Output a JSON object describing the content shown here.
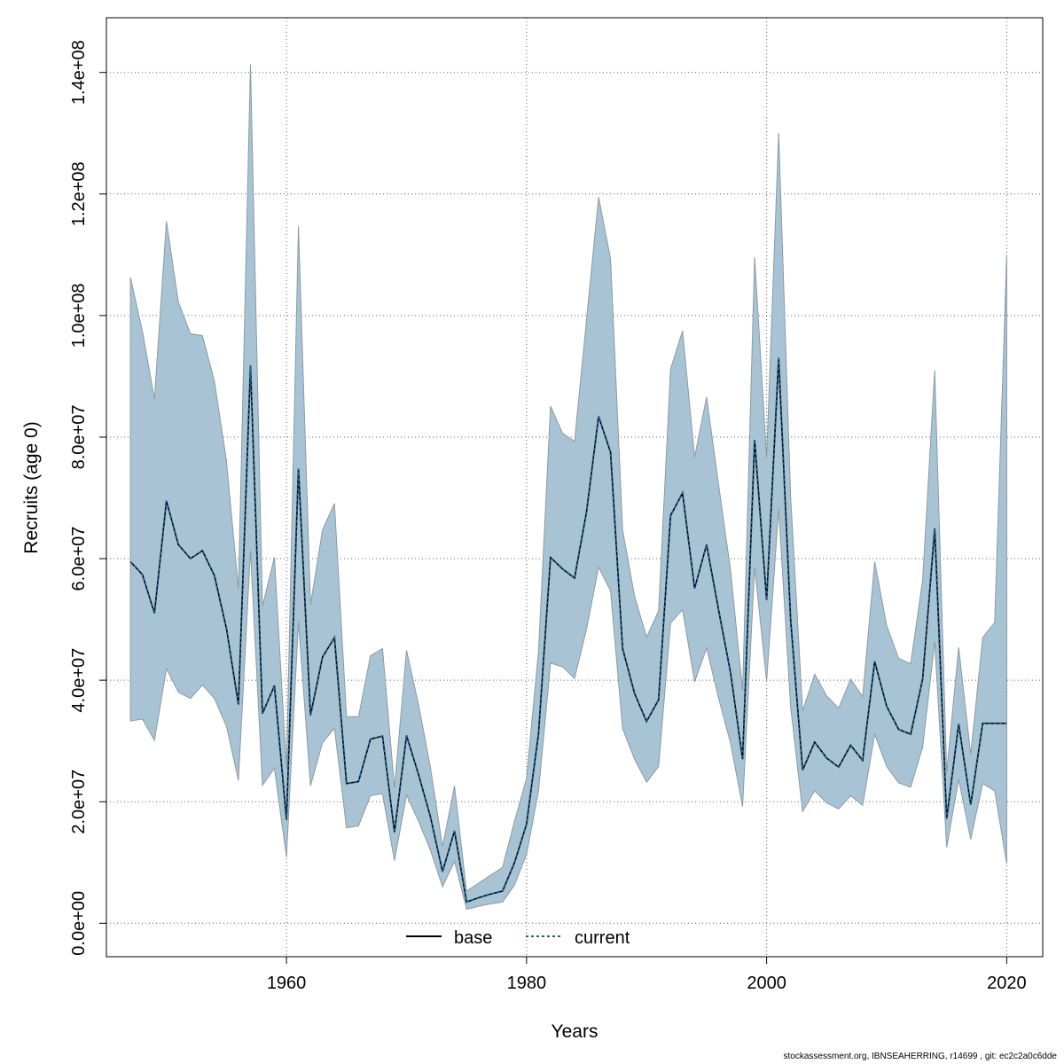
{
  "chart_data": {
    "type": "line",
    "xlabel": "Years",
    "ylabel": "Recruits (age 0)",
    "xlim": [
      1945,
      2023
    ],
    "ylim": [
      -5500000,
      149000000
    ],
    "x_ticks": [
      1960,
      1980,
      2000,
      2020
    ],
    "y_ticks": [
      0,
      20000000,
      40000000,
      60000000,
      80000000,
      100000000,
      120000000,
      140000000
    ],
    "y_tick_labels": [
      "0.0e+00",
      "2.0e+07",
      "4.0e+07",
      "6.0e+07",
      "8.0e+07",
      "1.0e+08",
      "1.2e+08",
      "1.4e+08"
    ],
    "grid": true,
    "legend_position": "bottom-center",
    "colors": {
      "band": "#a8c4d4",
      "band_edge": "#8d99a2",
      "base": "#000000",
      "current": "#1f5f8b"
    },
    "years": [
      1947,
      1948,
      1949,
      1950,
      1951,
      1952,
      1953,
      1954,
      1955,
      1956,
      1957,
      1958,
      1959,
      1960,
      1961,
      1962,
      1963,
      1964,
      1965,
      1966,
      1967,
      1968,
      1969,
      1970,
      1971,
      1972,
      1973,
      1974,
      1975,
      1976,
      1977,
      1978,
      1979,
      1980,
      1981,
      1982,
      1983,
      1984,
      1985,
      1986,
      1987,
      1988,
      1989,
      1990,
      1991,
      1992,
      1993,
      1994,
      1995,
      1996,
      1997,
      1998,
      1999,
      2000,
      2001,
      2002,
      2003,
      2004,
      2005,
      2006,
      2007,
      2008,
      2009,
      2010,
      2011,
      2012,
      2013,
      2014,
      2015,
      2016,
      2017,
      2018,
      2019,
      2020
    ],
    "series": [
      {
        "name": "base",
        "values": [
          59500000,
          57400000,
          51000000,
          69500000,
          62300000,
          60000000,
          61300000,
          57200000,
          48500000,
          36000000,
          91800000,
          34500000,
          39100000,
          17000000,
          74800000,
          34200000,
          43800000,
          47000000,
          23000000,
          23300000,
          30300000,
          30800000,
          15000000,
          30900000,
          24500000,
          17500000,
          8500000,
          15200000,
          3500000,
          4200000,
          4800000,
          5300000,
          10000000,
          16300000,
          31300000,
          60200000,
          58300000,
          56800000,
          67700000,
          83400000,
          77500000,
          45200000,
          37800000,
          33200000,
          36800000,
          67100000,
          70800000,
          55100000,
          62300000,
          51500000,
          41200000,
          27000000,
          79500000,
          53200000,
          93000000,
          49900000,
          25200000,
          29800000,
          27200000,
          25700000,
          29300000,
          26800000,
          43100000,
          35700000,
          31900000,
          31100000,
          40200000,
          65000000,
          17200000,
          32800000,
          19500000,
          32900000,
          32900000,
          32900000
        ]
      },
      {
        "name": "current",
        "values": [
          59500000,
          57400000,
          51000000,
          69500000,
          62300000,
          60000000,
          61300000,
          57200000,
          48500000,
          36000000,
          91800000,
          34500000,
          39100000,
          17000000,
          74800000,
          34200000,
          43800000,
          47000000,
          23000000,
          23300000,
          30300000,
          30800000,
          15000000,
          30900000,
          24500000,
          17500000,
          8500000,
          15200000,
          3500000,
          4200000,
          4800000,
          5300000,
          10000000,
          16300000,
          31300000,
          60200000,
          58300000,
          56800000,
          67700000,
          83400000,
          77500000,
          45200000,
          37800000,
          33200000,
          36800000,
          67100000,
          70800000,
          55100000,
          62300000,
          51500000,
          41200000,
          27000000,
          79500000,
          53200000,
          93000000,
          49900000,
          25200000,
          29800000,
          27200000,
          25700000,
          29300000,
          26800000,
          43100000,
          35700000,
          31900000,
          31100000,
          40200000,
          65000000,
          17200000,
          32800000,
          19500000,
          32900000,
          32900000,
          32900000
        ]
      }
    ],
    "interval": {
      "upper": [
        106300000,
        97400000,
        86300000,
        115500000,
        102200000,
        97000000,
        96700000,
        89200000,
        76100000,
        55000000,
        141300000,
        52200000,
        60200000,
        25500000,
        114700000,
        52400000,
        64700000,
        69100000,
        34000000,
        34000000,
        44000000,
        45200000,
        22300000,
        44900000,
        36000000,
        25600000,
        12600000,
        22600000,
        5300000,
        6600000,
        7900000,
        9200000,
        16800000,
        23800000,
        44900000,
        85100000,
        80600000,
        79300000,
        99300000,
        119500000,
        109300000,
        64700000,
        53800000,
        47100000,
        51400000,
        91200000,
        97500000,
        76700000,
        86600000,
        72100000,
        58000000,
        38300000,
        109600000,
        76700000,
        130000000,
        70200000,
        34900000,
        41000000,
        37400000,
        35400000,
        40200000,
        37300000,
        59500000,
        49000000,
        43600000,
        42700000,
        56500000,
        91000000,
        24800000,
        45400000,
        27800000,
        47000000,
        49500000,
        110000000
      ],
      "lower": [
        33300000,
        33600000,
        30100000,
        41900000,
        38000000,
        37000000,
        39200000,
        37000000,
        32400000,
        23500000,
        61300000,
        22700000,
        25500000,
        10900000,
        49700000,
        22600000,
        29700000,
        32100000,
        15700000,
        16000000,
        21000000,
        21300000,
        10300000,
        21100000,
        16800000,
        12000000,
        6000000,
        10200000,
        2300000,
        2800000,
        3200000,
        3500000,
        6300000,
        11300000,
        21800000,
        42800000,
        42200000,
        40300000,
        48400000,
        58600000,
        54700000,
        32000000,
        27000000,
        23200000,
        25800000,
        49400000,
        51600000,
        39700000,
        45300000,
        37000000,
        29600000,
        19200000,
        58600000,
        39800000,
        68200000,
        35600000,
        18400000,
        21800000,
        19800000,
        18800000,
        21000000,
        19400000,
        31100000,
        25800000,
        23100000,
        22400000,
        29000000,
        46300000,
        12500000,
        23700000,
        13800000,
        23000000,
        21800000,
        9800000
      ]
    },
    "legend": [
      "base",
      "current"
    ]
  },
  "footer": "stockassessment.org, IBNSEAHERRING, r14699 , git: ec2c2a0c6dde"
}
